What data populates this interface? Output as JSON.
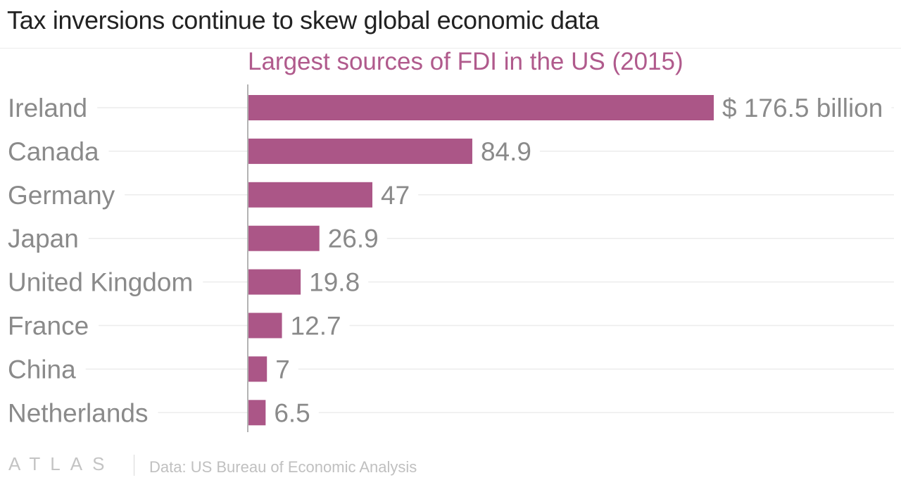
{
  "title": "Tax inversions continue to skew global economic data",
  "footer": {
    "logo": "ATLAS",
    "source": "Data: US Bureau of Economic Analysis"
  },
  "colors": {
    "bar": "#ab5687",
    "subtitle": "#b05a8c",
    "category_label": "#8a8a8a",
    "value_label": "#8a8a8a",
    "grid": "#ececec"
  },
  "chart_data": {
    "type": "bar",
    "orientation": "horizontal",
    "title": "Largest sources of FDI in the US (2015)",
    "categories": [
      "Ireland",
      "Canada",
      "Germany",
      "Japan",
      "United Kingdom",
      "France",
      "China",
      "Netherlands"
    ],
    "values": [
      176.5,
      84.9,
      47,
      26.9,
      19.8,
      12.7,
      7,
      6.5
    ],
    "value_labels": [
      "$ 176.5 billion",
      "84.9",
      "47",
      "26.9",
      "19.8",
      "12.7",
      "7",
      "6.5"
    ],
    "xlim": [
      0,
      176.5
    ],
    "grid": true
  }
}
